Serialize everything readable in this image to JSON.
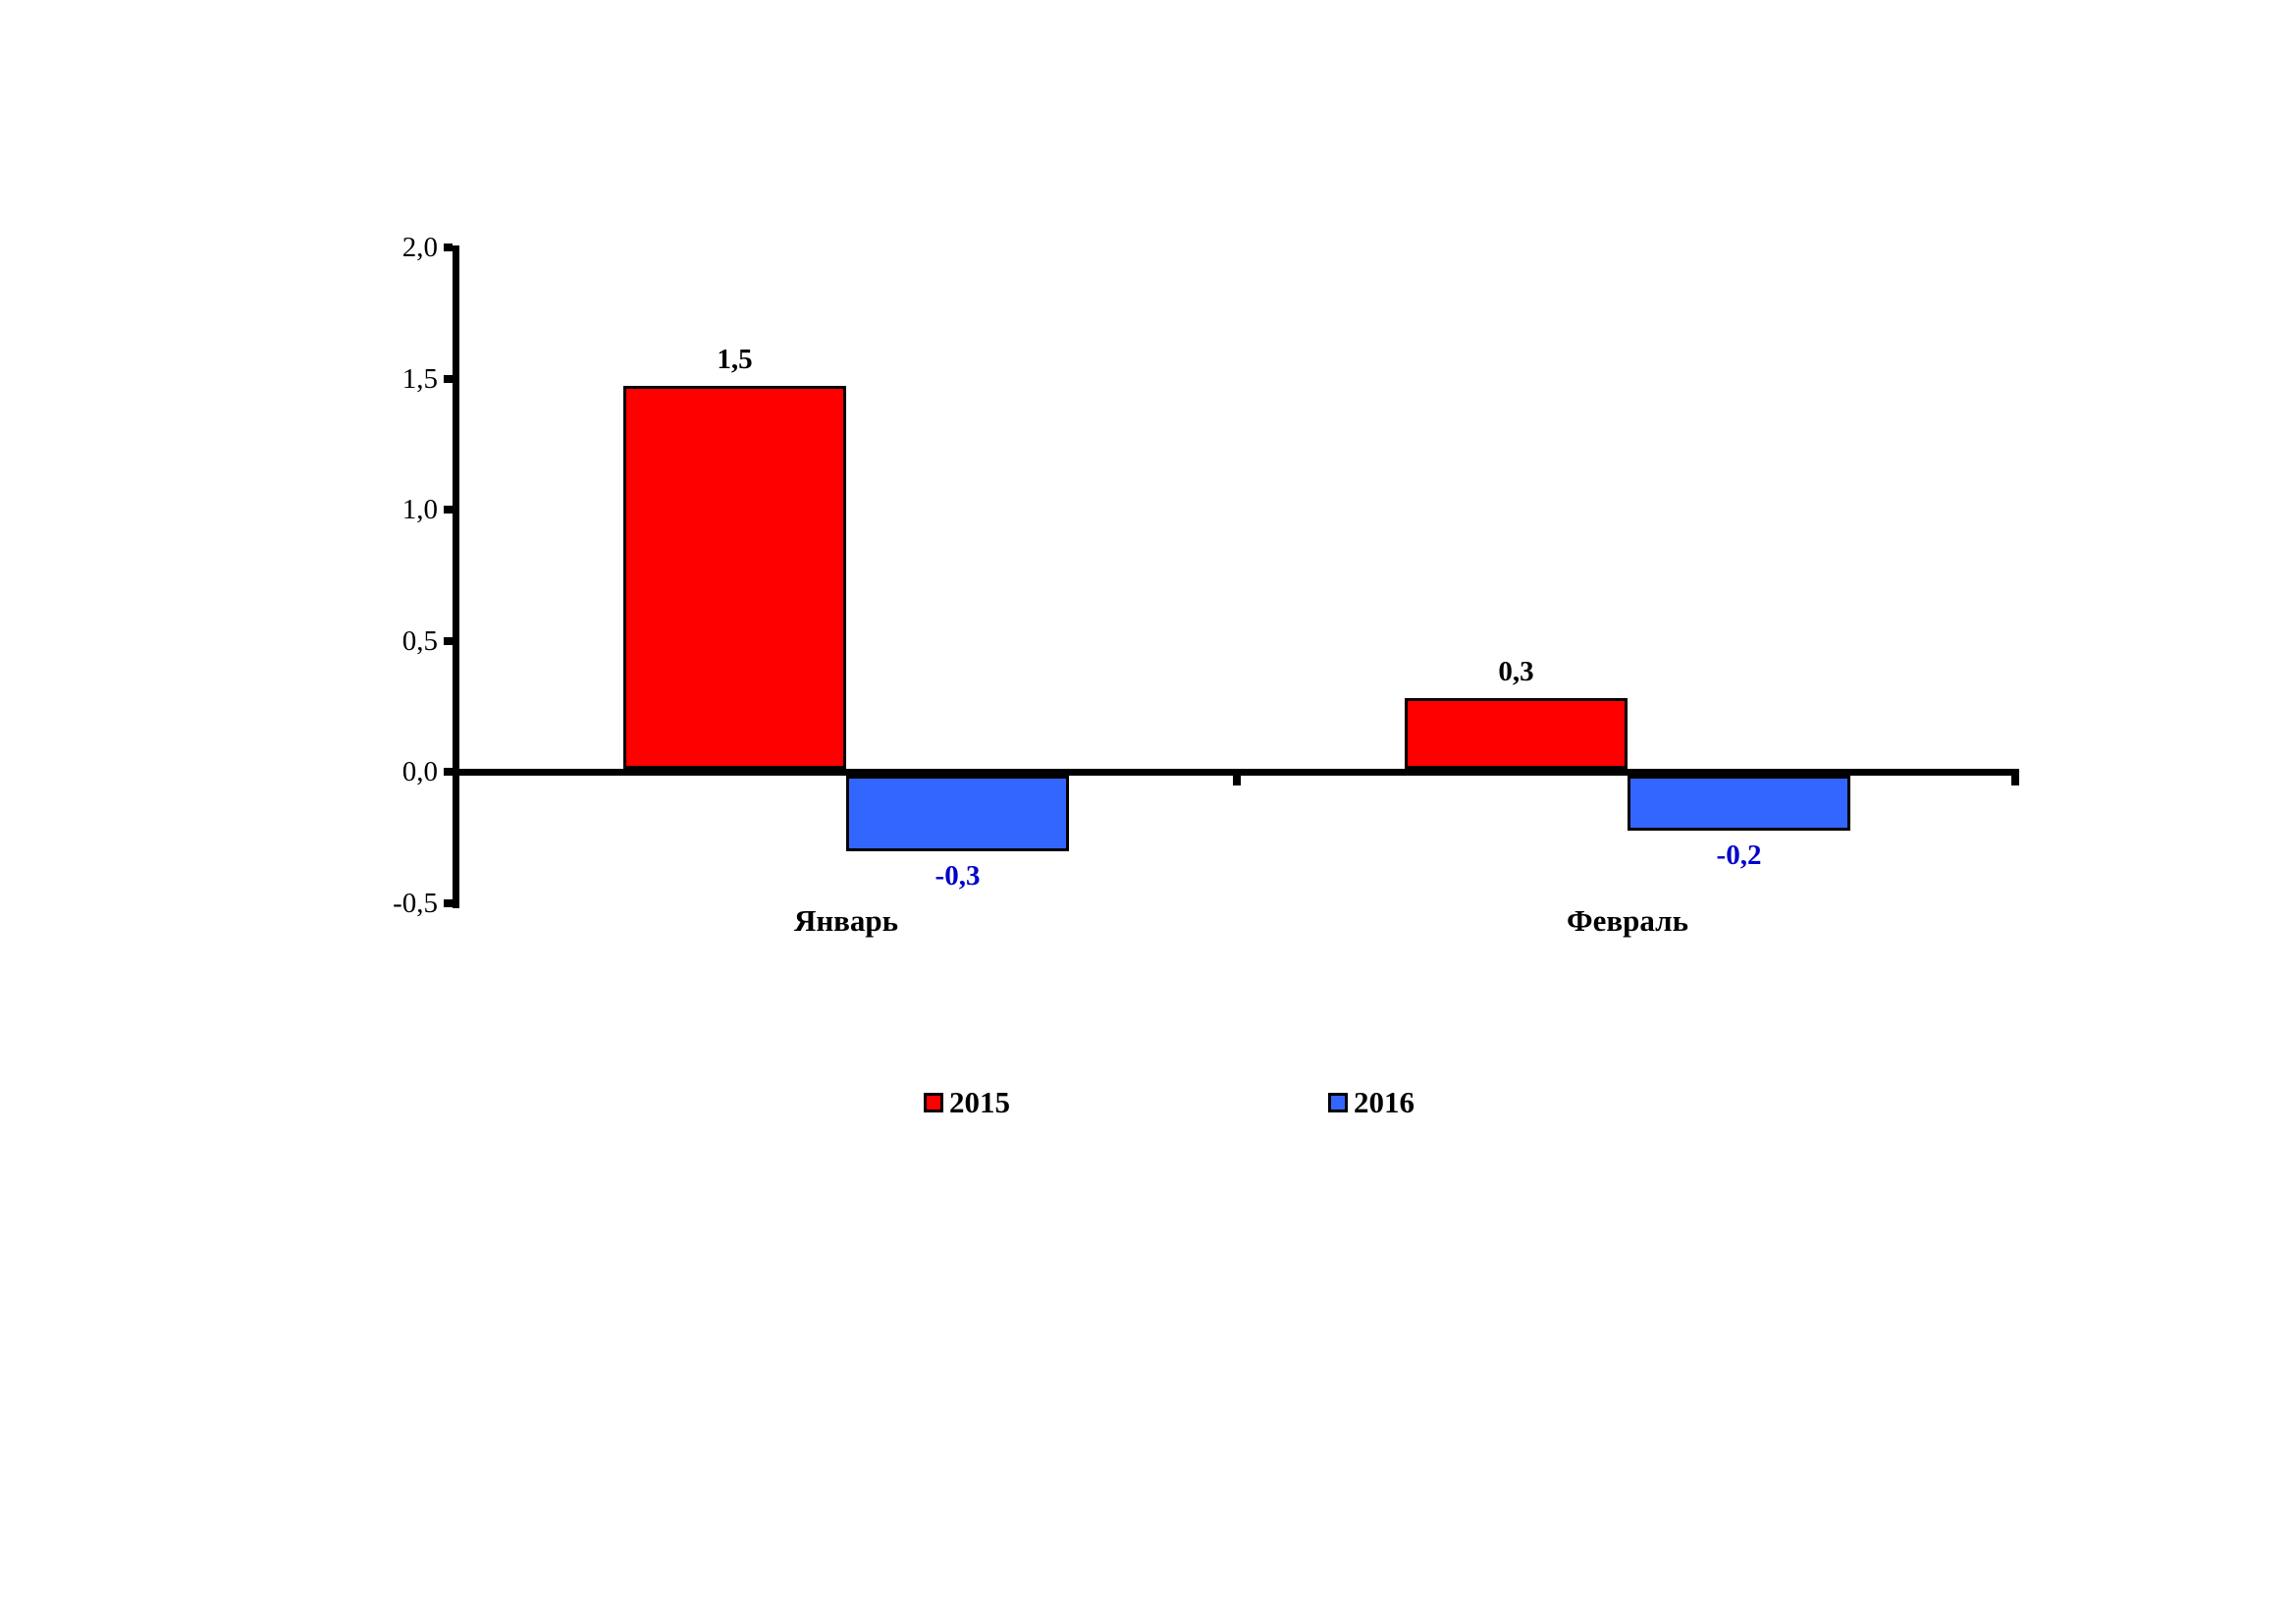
{
  "chart_data": {
    "type": "bar",
    "title": "",
    "xlabel": "",
    "ylabel": "",
    "categories": [
      "Январь",
      "Февраль"
    ],
    "series": [
      {
        "name": "2015",
        "color": "#FF0000",
        "label_color": "#000000",
        "values": [
          1.5,
          0.3
        ],
        "plotted_values": [
          1.46,
          0.27
        ],
        "labels": [
          "1,5",
          "0,3"
        ]
      },
      {
        "name": "2016",
        "color": "#3366FF",
        "label_color": "#0000CC",
        "values": [
          -0.3,
          -0.2
        ],
        "plotted_values": [
          -0.29,
          -0.21
        ],
        "labels": [
          "-0,3",
          "-0,2"
        ]
      }
    ],
    "ylim": [
      -0.5,
      2.0
    ],
    "ytick_step": 0.5,
    "ytick_values": [
      2.0,
      1.5,
      1.0,
      0.5,
      0.0,
      -0.5
    ],
    "yticks": [
      "2,0",
      "1,5",
      "1,0",
      "0,5",
      "0,0",
      "-0,5"
    ],
    "decimal_separator": ",",
    "grid": false,
    "legend_position": "bottom"
  },
  "legend": {
    "items": [
      {
        "label": "2015",
        "color": "#FF0000"
      },
      {
        "label": "2016",
        "color": "#3366FF"
      }
    ]
  }
}
